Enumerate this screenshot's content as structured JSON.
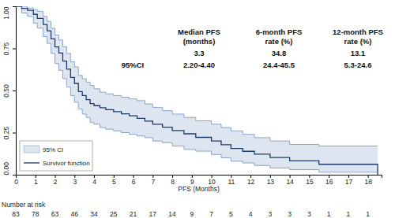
{
  "chart_data": {
    "type": "step",
    "x_label": "PFS (Months)",
    "xlim": [
      0,
      18.7
    ],
    "xticks": [
      0,
      1,
      2,
      3,
      4,
      5,
      6,
      7,
      8,
      9,
      10,
      11,
      12,
      13,
      14,
      15,
      16,
      17,
      18
    ],
    "ylim": [
      0,
      1
    ],
    "yticks": [
      {
        "value": 0,
        "label": "0.00"
      },
      {
        "value": 0.25,
        "label": "0.25"
      },
      {
        "value": 0.5,
        "label": "0.50"
      },
      {
        "value": 0.75,
        "label": "0.75"
      },
      {
        "value": 1,
        "label": "1.00"
      }
    ],
    "grid": false,
    "legend": "lower left",
    "x": [
      0,
      0.3,
      0.6,
      0.9,
      1.1,
      1.4,
      1.6,
      1.8,
      2.0,
      2.2,
      2.4,
      2.6,
      2.8,
      3.0,
      3.2,
      3.4,
      3.6,
      3.8,
      4.0,
      4.3,
      4.6,
      5.0,
      5.4,
      5.8,
      6.2,
      6.6,
      7.0,
      7.5,
      8.0,
      8.6,
      9.2,
      10.0,
      10.5,
      11.0,
      11.6,
      12.2,
      13.0,
      14.0,
      15.5,
      18.5
    ],
    "series": [
      {
        "name": "95% CI",
        "type": "band",
        "color": "#dde5f0",
        "lower": [
          1.0,
          0.96,
          0.94,
          0.9,
          0.87,
          0.82,
          0.78,
          0.72,
          0.66,
          0.62,
          0.57,
          0.52,
          0.47,
          0.43,
          0.39,
          0.36,
          0.34,
          0.31,
          0.3,
          0.28,
          0.27,
          0.26,
          0.25,
          0.24,
          0.23,
          0.22,
          0.2,
          0.19,
          0.17,
          0.15,
          0.14,
          0.12,
          0.1,
          0.08,
          0.07,
          0.055,
          0.04,
          0.03,
          0.015,
          0.015
        ],
        "upper": [
          1.0,
          1.0,
          0.99,
          0.98,
          0.97,
          0.94,
          0.91,
          0.87,
          0.83,
          0.8,
          0.76,
          0.72,
          0.67,
          0.64,
          0.59,
          0.57,
          0.55,
          0.53,
          0.51,
          0.49,
          0.48,
          0.47,
          0.46,
          0.45,
          0.44,
          0.42,
          0.4,
          0.38,
          0.36,
          0.34,
          0.32,
          0.3,
          0.28,
          0.26,
          0.24,
          0.22,
          0.2,
          0.18,
          0.17,
          0.17
        ]
      },
      {
        "name": "Survivor function",
        "type": "step",
        "color": "#1f3a68",
        "values": [
          1.0,
          0.988,
          0.976,
          0.952,
          0.928,
          0.892,
          0.855,
          0.807,
          0.759,
          0.723,
          0.675,
          0.627,
          0.578,
          0.542,
          0.494,
          0.47,
          0.446,
          0.422,
          0.41,
          0.398,
          0.386,
          0.374,
          0.362,
          0.35,
          0.335,
          0.318,
          0.3,
          0.282,
          0.262,
          0.243,
          0.222,
          0.2,
          0.178,
          0.156,
          0.139,
          0.122,
          0.102,
          0.082,
          0.062,
          0.0
        ]
      }
    ],
    "annotations": {
      "ci_label": "95%CI",
      "columns": [
        {
          "header": [
            "Median PFS",
            "(months)"
          ],
          "estimate": 3.3,
          "ci": "2.20-4.40"
        },
        {
          "header": [
            "6-month PFS",
            "rate (%)"
          ],
          "estimate": 34.8,
          "ci": "24.4-45.5"
        },
        {
          "header": [
            "12-month PFS",
            "rate (%)"
          ],
          "estimate": 13.1,
          "ci": "5.3-24.6"
        }
      ]
    },
    "at_risk": {
      "label": "Number at risk",
      "x": [
        0,
        1,
        2,
        3,
        4,
        5,
        6,
        7,
        8,
        9,
        10,
        11,
        12,
        13,
        14,
        15,
        16,
        17,
        18
      ],
      "counts": [
        83,
        78,
        63,
        46,
        34,
        25,
        21,
        17,
        14,
        9,
        7,
        5,
        4,
        3,
        3,
        3,
        1,
        1,
        1
      ]
    }
  }
}
